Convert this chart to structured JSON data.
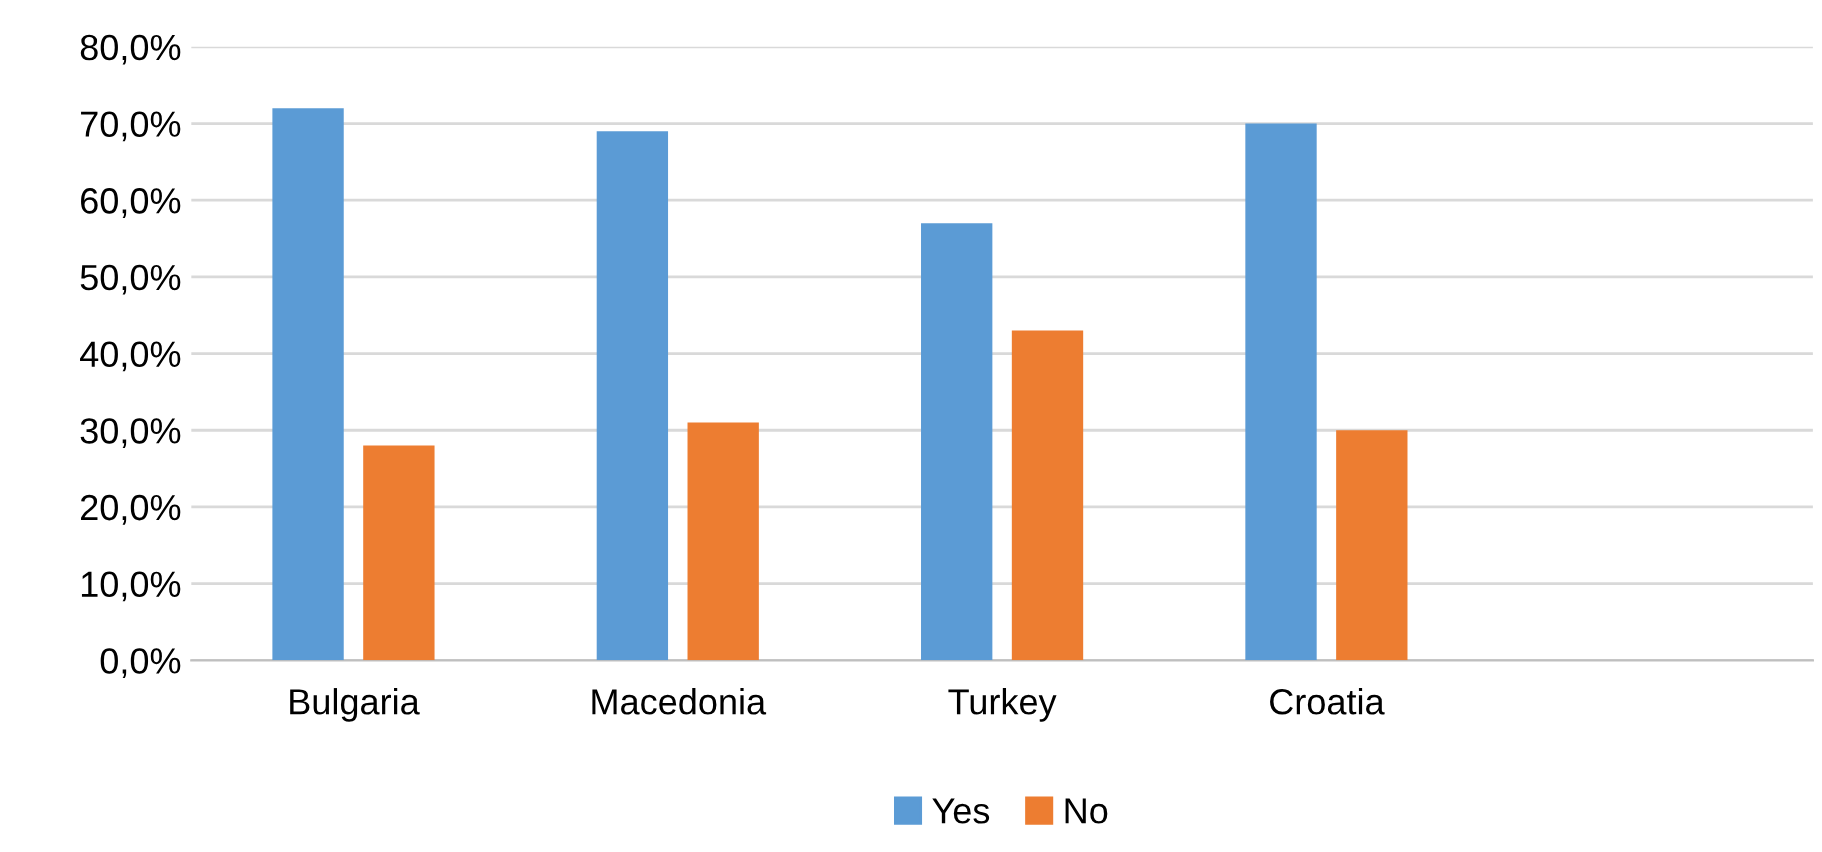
{
  "chart_data": {
    "type": "bar",
    "categories": [
      "Bulgaria",
      "Macedonia",
      "Turkey",
      "Croatia",
      null
    ],
    "series": [
      {
        "name": "Yes",
        "color": "#5b9bd5",
        "values": [
          72,
          69,
          57,
          70,
          null
        ]
      },
      {
        "name": "No",
        "color": "#ed7d31",
        "values": [
          28,
          31,
          43,
          30,
          null
        ]
      }
    ],
    "ylim": [
      0,
      80
    ],
    "yticks": [
      {
        "value": 0,
        "label": "0,0%"
      },
      {
        "value": 10,
        "label": "10,0%"
      },
      {
        "value": 20,
        "label": "20,0%"
      },
      {
        "value": 30,
        "label": "30,0%"
      },
      {
        "value": 40,
        "label": "40,0%"
      },
      {
        "value": 50,
        "label": "50,0%"
      },
      {
        "value": 60,
        "label": "60,0%"
      },
      {
        "value": 70,
        "label": "70,0%"
      },
      {
        "value": 80,
        "label": "80,0%"
      }
    ],
    "grid": "y",
    "legend": "bottom"
  }
}
